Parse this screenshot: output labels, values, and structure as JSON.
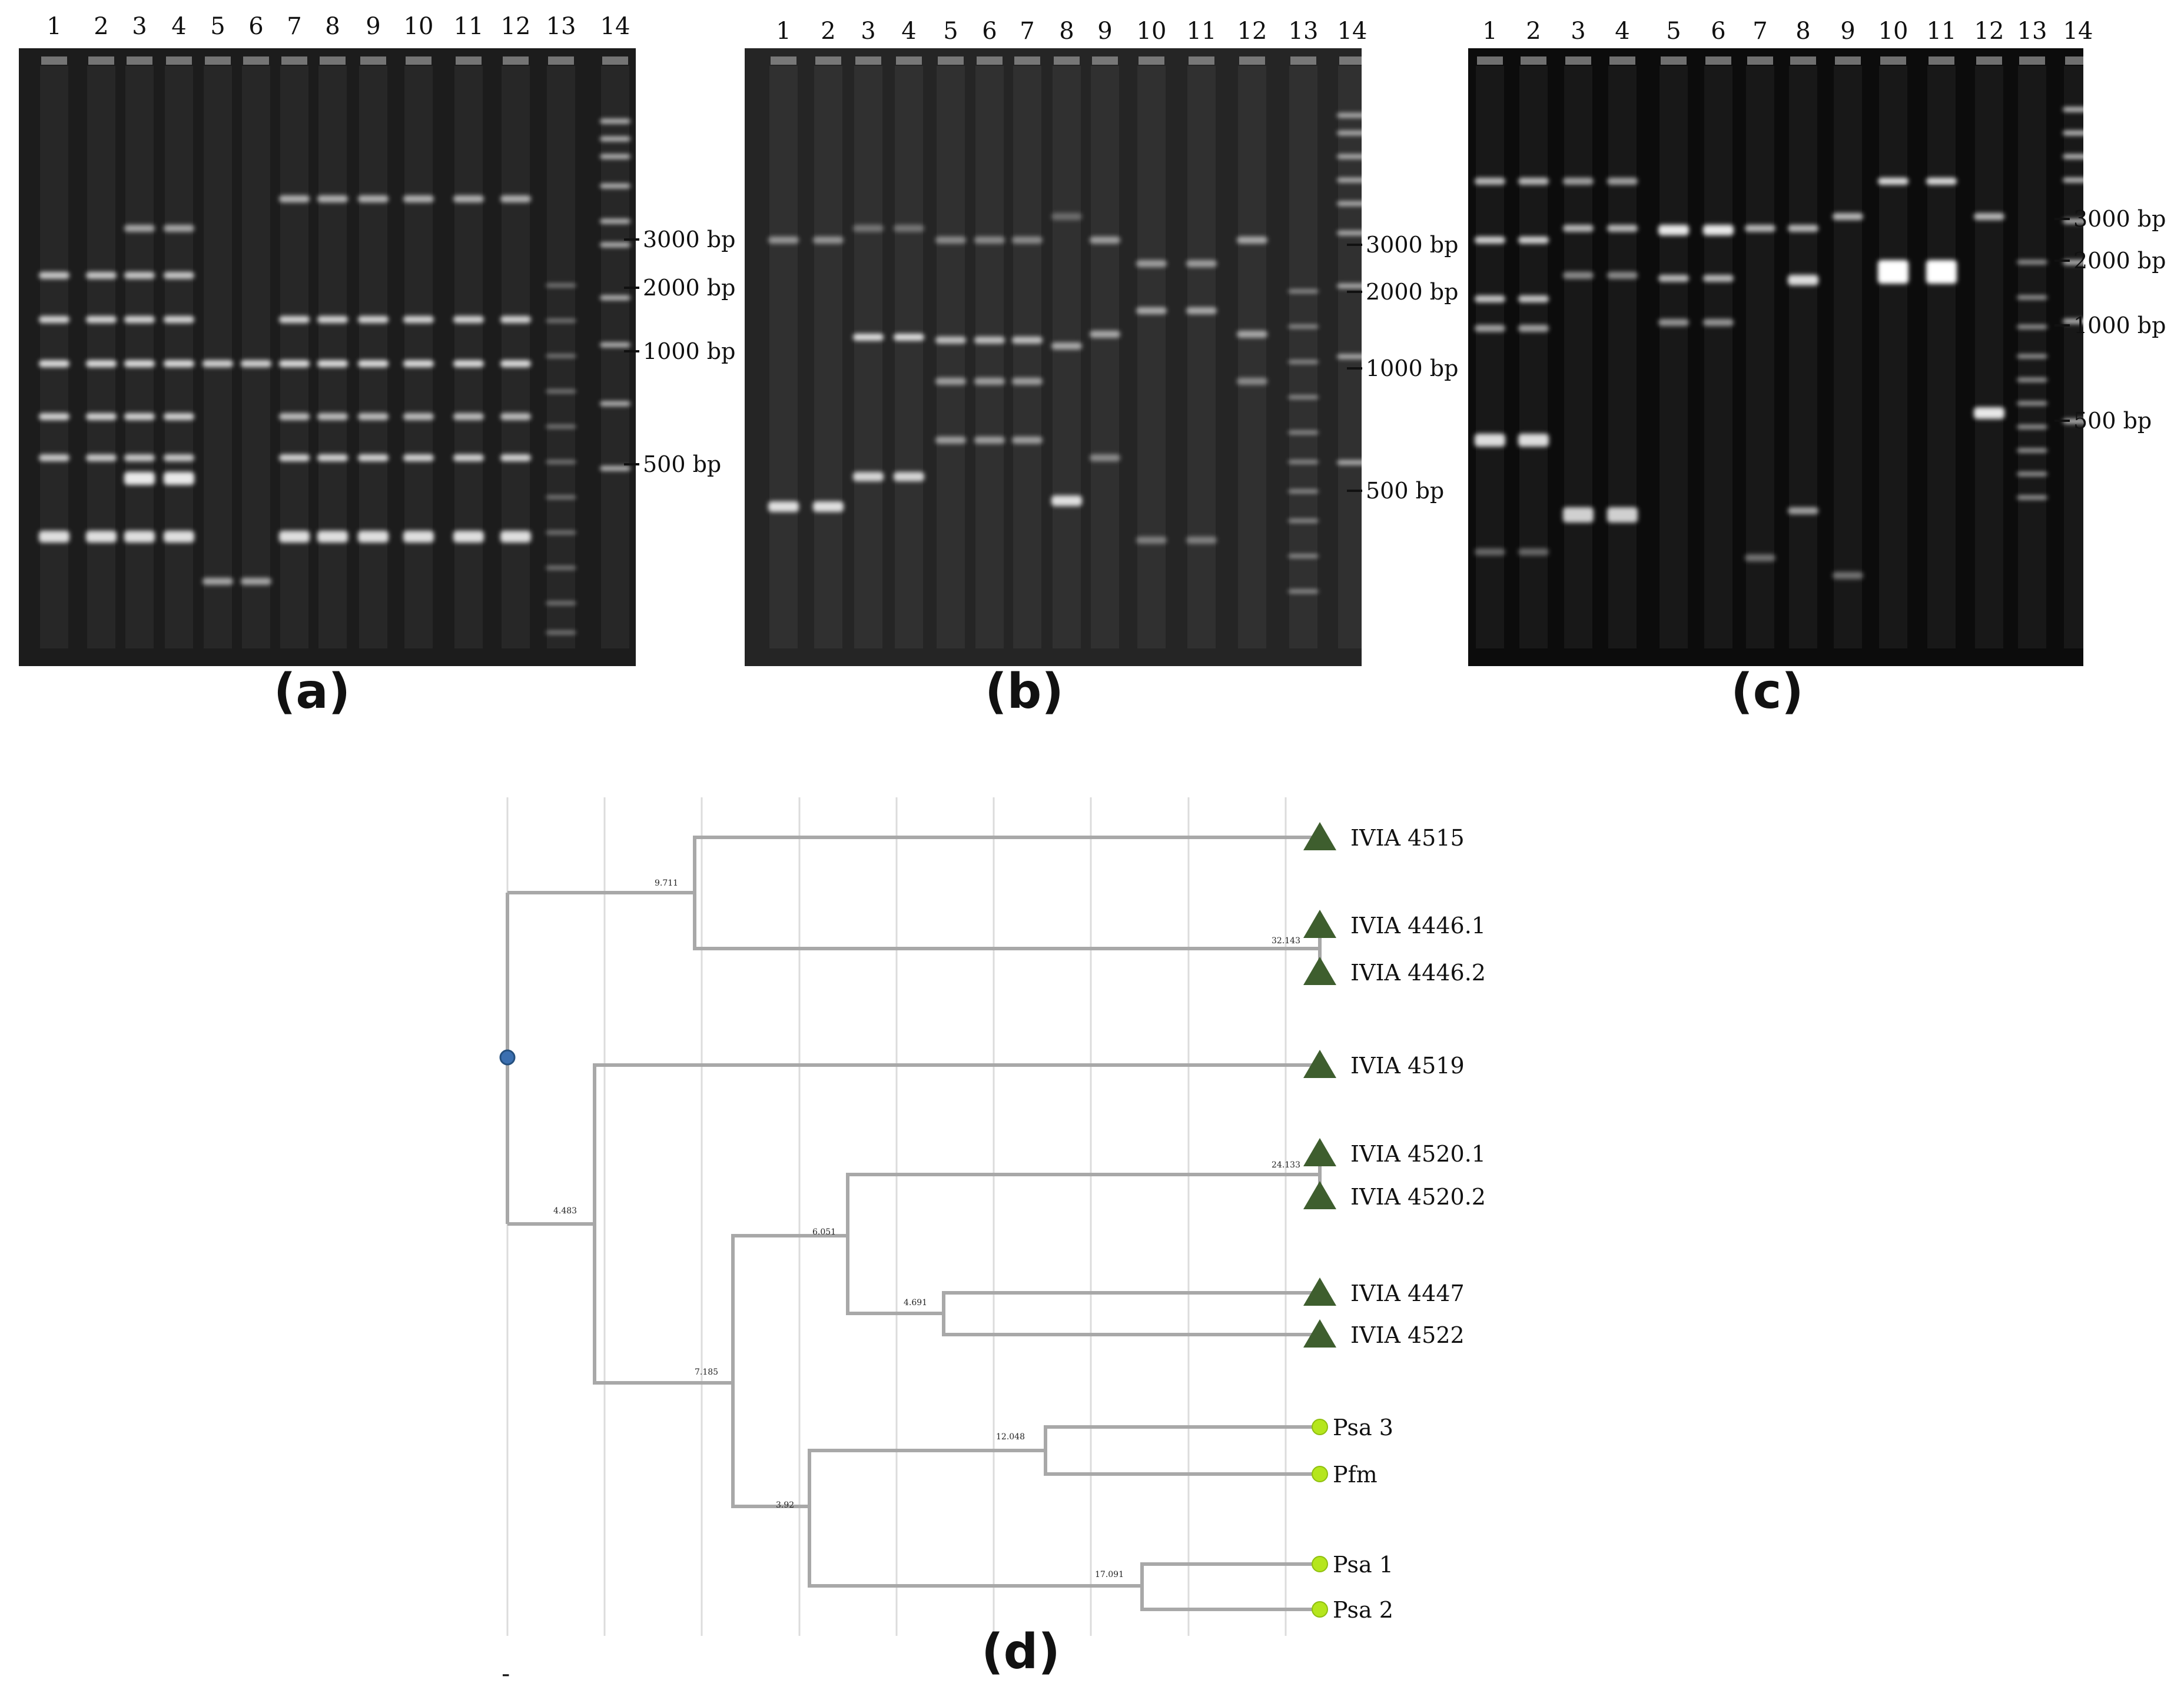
{
  "panels": [
    {
      "id": "a",
      "label": "(a)",
      "lanes": [
        "1",
        "2",
        "3",
        "4",
        "5",
        "6",
        "7",
        "8",
        "9",
        "10",
        "11",
        "12",
        "13",
        "14"
      ],
      "markers": [
        "3000 bp",
        "2000 bp",
        "1000 bp",
        "500 bp"
      ]
    },
    {
      "id": "b",
      "label": "(b)",
      "lanes": [
        "1",
        "2",
        "3",
        "4",
        "5",
        "6",
        "7",
        "8",
        "9",
        "10",
        "11",
        "12",
        "13",
        "14"
      ],
      "markers": [
        "3000 bp",
        "2000 bp",
        "1000 bp",
        "500 bp"
      ]
    },
    {
      "id": "c",
      "label": "(c)",
      "lanes": [
        "1",
        "2",
        "3",
        "4",
        "5",
        "6",
        "7",
        "8",
        "9",
        "10",
        "11",
        "12",
        "13",
        "14"
      ],
      "markers": [
        "3000 bp",
        "2000 bp",
        "1000 bp",
        "500 bp"
      ]
    }
  ],
  "tree": {
    "label": "(d)",
    "footer_mark": "-",
    "leaves": [
      {
        "name": "IVIA 4515",
        "marker": "triangle"
      },
      {
        "name": "IVIA 4446.1",
        "marker": "triangle"
      },
      {
        "name": "IVIA 4446.2",
        "marker": "triangle"
      },
      {
        "name": "IVIA 4519",
        "marker": "triangle"
      },
      {
        "name": "IVIA 4520.1",
        "marker": "triangle"
      },
      {
        "name": "IVIA 4520.2",
        "marker": "triangle"
      },
      {
        "name": "IVIA 4447",
        "marker": "triangle"
      },
      {
        "name": "IVIA 4522",
        "marker": "triangle"
      },
      {
        "name": "Psa 3",
        "marker": "circle"
      },
      {
        "name": "Pfm",
        "marker": "circle"
      },
      {
        "name": "Psa 1",
        "marker": "circle"
      },
      {
        "name": "Psa 2",
        "marker": "circle"
      }
    ],
    "branch_values": [
      "9.711",
      "32.143",
      "4.483",
      "24.133",
      "6.051",
      "4.691",
      "7.185",
      "12.048",
      "3.92",
      "17.091"
    ],
    "colors": {
      "branch": "#a8a8a8",
      "triangle": "#3e5e2e",
      "circle": "#b5e61d",
      "root": "#3b6fb0",
      "grid": "#dcdcdc"
    }
  }
}
